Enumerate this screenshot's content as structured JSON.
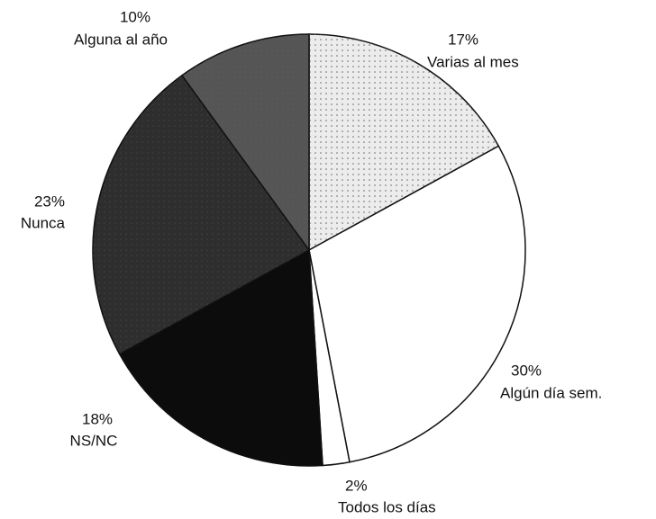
{
  "chart_data": {
    "type": "pie",
    "categories": [
      "Varias al mes",
      "Algún día sem.",
      "Todos los días",
      "NS/NC",
      "Nunca",
      "Alguna al año"
    ],
    "values": [
      17,
      30,
      2,
      18,
      23,
      10
    ],
    "value_labels": [
      "17%",
      "30%",
      "2%",
      "18%",
      "23%",
      "10%"
    ],
    "colors": [
      "#ececec",
      "#ffffff",
      "#ffffff",
      "#0c0c0c",
      "#2e2e2e",
      "#555555"
    ]
  }
}
